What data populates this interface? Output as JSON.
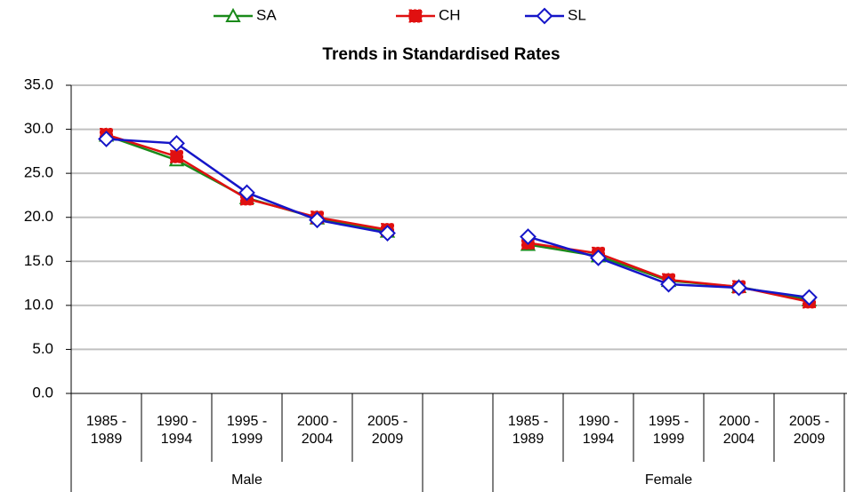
{
  "chart_data": {
    "type": "line",
    "title": "Trends in Standardised Rates",
    "categories": [
      "1985 - 1989",
      "1990 - 1994",
      "1995 - 1999",
      "2000 - 2004",
      "2005 - 2009",
      null,
      "1985 - 1989",
      "1990 - 1994",
      "1995 - 1999",
      "2000 - 2004",
      "2005 - 2009"
    ],
    "groups": [
      "Male",
      "Female"
    ],
    "series": [
      {
        "name": "SA",
        "color": "#1a8a1a",
        "marker": "triangle",
        "values": [
          29.3,
          26.5,
          22.2,
          19.9,
          18.4,
          null,
          16.9,
          15.6,
          12.8,
          12.1,
          10.6
        ]
      },
      {
        "name": "CH",
        "color": "#e01010",
        "marker": "square",
        "values": [
          29.4,
          26.9,
          22.1,
          20.0,
          18.6,
          null,
          17.1,
          15.9,
          12.9,
          12.1,
          10.4
        ]
      },
      {
        "name": "SL",
        "color": "#1515c8",
        "marker": "diamond",
        "values": [
          28.9,
          28.4,
          22.8,
          19.7,
          18.2,
          null,
          17.8,
          15.4,
          12.4,
          12.0,
          10.9
        ]
      }
    ],
    "ylim": [
      0,
      35
    ],
    "yticks": [
      {
        "value": 0,
        "label": "0.0"
      },
      {
        "value": 5,
        "label": "5.0"
      },
      {
        "value": 10,
        "label": "10.0"
      },
      {
        "value": 15,
        "label": "15.0"
      },
      {
        "value": 20,
        "label": "20.0"
      },
      {
        "value": 25,
        "label": "25.0"
      },
      {
        "value": 30,
        "label": "30.0"
      },
      {
        "value": 35,
        "label": "35.0"
      }
    ],
    "grid": true,
    "legend": "top"
  }
}
